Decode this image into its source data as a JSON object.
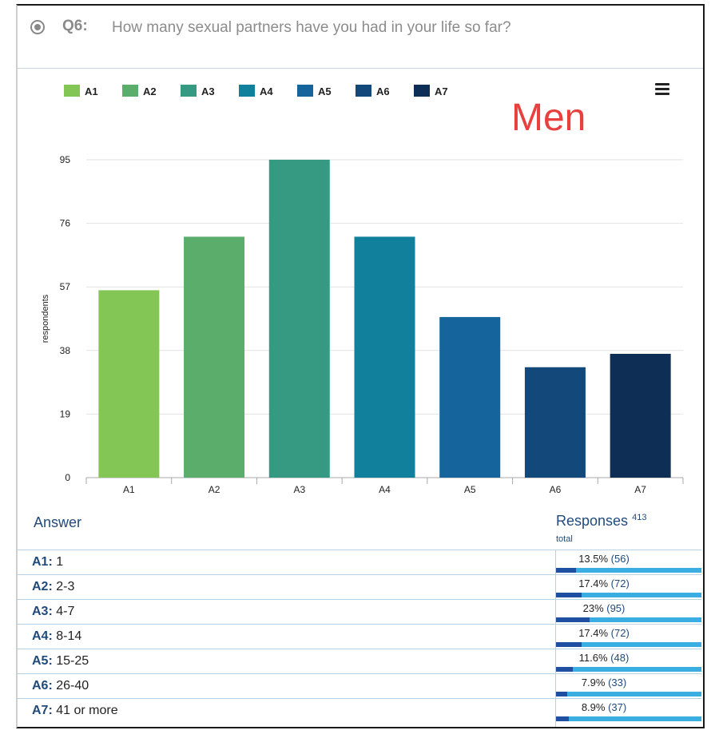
{
  "question": {
    "number": "Q6:",
    "text": "How many sexual partners have you had in your life so far?"
  },
  "annotation": "Men",
  "colors": {
    "A1": "#84c656",
    "A2": "#5aad6b",
    "A3": "#369a83",
    "A4": "#11809d",
    "A5": "#15649c",
    "A6": "#13487a",
    "A7": "#0e2e55",
    "grid": "#e2e2e2",
    "accent": "#1f4a7a"
  },
  "icons": {
    "radio": "radio-button-icon",
    "menu": "hamburger-menu-icon"
  },
  "chart_data": {
    "type": "bar",
    "title": "",
    "xlabel": "",
    "ylabel": "respondents",
    "categories": [
      "A1",
      "A2",
      "A3",
      "A4",
      "A5",
      "A6",
      "A7"
    ],
    "values": [
      56,
      72,
      95,
      72,
      48,
      33,
      37
    ],
    "legend": [
      "A1",
      "A2",
      "A3",
      "A4",
      "A5",
      "A6",
      "A7"
    ],
    "legend_position": "top-left",
    "y_ticks": [
      0,
      19,
      38,
      57,
      76,
      95
    ],
    "ylim": [
      0,
      95
    ],
    "grid": true
  },
  "table": {
    "answer_header": "Answer",
    "responses_header": "Responses",
    "responses_total": "413",
    "total_word": "total",
    "rows": [
      {
        "code": "A1:",
        "answer": "1",
        "percent": "13.5%",
        "count": "(56)",
        "fraction": 0.135
      },
      {
        "code": "A2:",
        "answer": "2-3",
        "percent": "17.4%",
        "count": "(72)",
        "fraction": 0.174
      },
      {
        "code": "A3:",
        "answer": "4-7",
        "percent": "23%",
        "count": "(95)",
        "fraction": 0.23
      },
      {
        "code": "A4:",
        "answer": "8-14",
        "percent": "17.4%",
        "count": "(72)",
        "fraction": 0.174
      },
      {
        "code": "A5:",
        "answer": "15-25",
        "percent": "11.6%",
        "count": "(48)",
        "fraction": 0.116
      },
      {
        "code": "A6:",
        "answer": "26-40",
        "percent": "7.9%",
        "count": "(33)",
        "fraction": 0.079
      },
      {
        "code": "A7:",
        "answer": "41 or more",
        "percent": "8.9%",
        "count": "(37)",
        "fraction": 0.089
      }
    ]
  }
}
